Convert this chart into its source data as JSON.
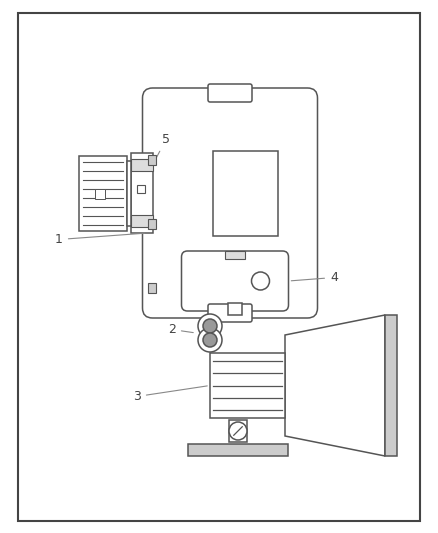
{
  "bg_color": "#ffffff",
  "border_color": "#444444",
  "line_color": "#555555",
  "label_color": "#444444",
  "fig_width": 4.38,
  "fig_height": 5.33,
  "dpi": 100
}
